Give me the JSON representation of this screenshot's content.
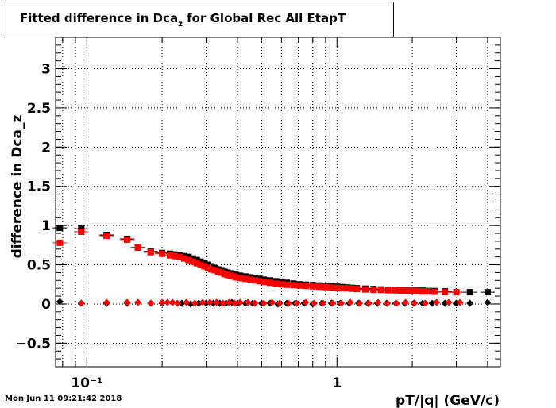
{
  "title": {
    "main": "Fitted difference in Dca",
    "sub": "z",
    "rest": " for Global Rec All EtapT"
  },
  "timestamp": "Mon Jun 11 09:21:42 2018",
  "chart_data": {
    "type": "scatter",
    "title": "Fitted difference in Dca_z for Global Rec All EtapT",
    "xlabel": "pT/|q| (GeV/c)",
    "ylabel": "difference in Dca_z",
    "xscale": "log",
    "xlim": [
      0.075,
      4.5
    ],
    "ylim": [
      -0.8,
      3.4
    ],
    "grid": true,
    "x_tick_labels": [
      "10⁻¹",
      "1"
    ],
    "y_tick_labels": [
      "−0.5",
      "0",
      "0.5",
      "1",
      "1.5",
      "2",
      "2.5",
      "3"
    ],
    "y_ticks": [
      -0.5,
      0,
      0.5,
      1,
      1.5,
      2,
      2.5,
      3
    ],
    "series": [
      {
        "marker": "square",
        "color": "#000000",
        "x": [
          0.078,
          0.095,
          0.12,
          0.145,
          0.16,
          0.18,
          0.2,
          0.215,
          0.225,
          0.235,
          0.245,
          0.255,
          0.265,
          0.275,
          0.285,
          0.295,
          0.305,
          0.315,
          0.325,
          0.335,
          0.345,
          0.355,
          0.365,
          0.375,
          0.385,
          0.395,
          0.41,
          0.43,
          0.45,
          0.47,
          0.49,
          0.51,
          0.54,
          0.57,
          0.6,
          0.63,
          0.67,
          0.71,
          0.75,
          0.8,
          0.85,
          0.9,
          0.95,
          1.0,
          1.05,
          1.1,
          1.15,
          1.2,
          1.3,
          1.4,
          1.5,
          1.6,
          1.7,
          1.8,
          1.9,
          2.0,
          2.1,
          2.2,
          2.3,
          2.45,
          2.7,
          3.0,
          3.4,
          4.0
        ],
        "y": [
          0.97,
          0.96,
          0.88,
          0.83,
          0.72,
          0.67,
          0.65,
          0.64,
          0.63,
          0.62,
          0.61,
          0.6,
          0.58,
          0.56,
          0.54,
          0.52,
          0.5,
          0.48,
          0.46,
          0.44,
          0.43,
          0.41,
          0.4,
          0.39,
          0.38,
          0.37,
          0.36,
          0.35,
          0.34,
          0.33,
          0.32,
          0.31,
          0.3,
          0.29,
          0.28,
          0.27,
          0.26,
          0.25,
          0.245,
          0.24,
          0.235,
          0.23,
          0.225,
          0.22,
          0.215,
          0.21,
          0.205,
          0.2,
          0.195,
          0.19,
          0.185,
          0.18,
          0.18,
          0.175,
          0.175,
          0.17,
          0.17,
          0.17,
          0.165,
          0.165,
          0.16,
          0.15,
          0.15,
          0.15
        ]
      },
      {
        "marker": "square",
        "color": "#ff0000",
        "x": [
          0.078,
          0.095,
          0.12,
          0.145,
          0.16,
          0.18,
          0.2,
          0.215,
          0.225,
          0.235,
          0.245,
          0.255,
          0.265,
          0.275,
          0.285,
          0.295,
          0.305,
          0.315,
          0.325,
          0.335,
          0.345,
          0.355,
          0.365,
          0.375,
          0.385,
          0.395,
          0.41,
          0.43,
          0.45,
          0.47,
          0.49,
          0.51,
          0.54,
          0.57,
          0.6,
          0.63,
          0.67,
          0.71,
          0.75,
          0.8,
          0.85,
          0.9,
          0.95,
          1.0,
          1.05,
          1.1,
          1.15,
          1.2,
          1.3,
          1.4,
          1.5,
          1.6,
          1.7,
          1.8,
          1.9,
          2.0,
          2.1,
          2.2,
          2.3,
          2.45,
          2.7,
          3.0
        ],
        "y": [
          0.78,
          0.92,
          0.87,
          0.82,
          0.72,
          0.66,
          0.64,
          0.62,
          0.61,
          0.6,
          0.58,
          0.56,
          0.54,
          0.52,
          0.5,
          0.48,
          0.46,
          0.44,
          0.43,
          0.41,
          0.4,
          0.38,
          0.37,
          0.36,
          0.35,
          0.34,
          0.33,
          0.32,
          0.31,
          0.3,
          0.29,
          0.28,
          0.27,
          0.26,
          0.25,
          0.245,
          0.24,
          0.235,
          0.23,
          0.225,
          0.22,
          0.215,
          0.21,
          0.205,
          0.2,
          0.2,
          0.195,
          0.19,
          0.185,
          0.18,
          0.18,
          0.175,
          0.175,
          0.17,
          0.17,
          0.165,
          0.165,
          0.16,
          0.16,
          0.155,
          0.15,
          0.15
        ]
      },
      {
        "marker": "diamond",
        "color": "#000000",
        "x": [
          0.078,
          0.095,
          0.12,
          0.145,
          0.16,
          0.18,
          0.2,
          0.22,
          0.24,
          0.26,
          0.28,
          0.3,
          0.32,
          0.34,
          0.36,
          0.38,
          0.4,
          0.43,
          0.46,
          0.5,
          0.54,
          0.58,
          0.63,
          0.68,
          0.74,
          0.8,
          0.87,
          0.95,
          1.03,
          1.12,
          1.22,
          1.33,
          1.45,
          1.58,
          1.72,
          1.87,
          2.03,
          2.2,
          2.4,
          2.7,
          3.0,
          3.4,
          4.0
        ],
        "y": [
          0.03,
          0.01,
          0.01,
          0.01,
          0.02,
          0.01,
          0.01,
          0.02,
          0.01,
          0.0,
          0.01,
          0.01,
          0.01,
          0.01,
          0.01,
          0.02,
          0.01,
          0.01,
          0.01,
          0.01,
          0.01,
          0.0,
          0.01,
          0.01,
          0.01,
          0.0,
          0.01,
          0.01,
          0.01,
          0.01,
          0.01,
          0.01,
          0.01,
          0.01,
          0.01,
          0.01,
          0.01,
          0.01,
          0.01,
          0.01,
          0.01,
          0.01,
          0.02
        ]
      },
      {
        "marker": "diamond",
        "color": "#ff0000",
        "x": [
          0.095,
          0.12,
          0.145,
          0.16,
          0.18,
          0.2,
          0.21,
          0.22,
          0.23,
          0.25,
          0.27,
          0.29,
          0.31,
          0.33,
          0.35,
          0.37,
          0.39,
          0.41,
          0.44,
          0.47,
          0.51,
          0.55,
          0.59,
          0.64,
          0.69,
          0.75,
          0.81,
          0.88,
          0.96,
          1.04,
          1.13,
          1.23,
          1.34,
          1.46,
          1.59,
          1.73,
          1.88,
          2.04,
          2.25,
          2.5,
          2.8,
          3.1
        ],
        "y": [
          0.01,
          0.02,
          0.02,
          0.02,
          0.01,
          0.02,
          0.02,
          0.02,
          0.01,
          0.02,
          0.01,
          0.02,
          0.02,
          0.02,
          0.01,
          0.02,
          0.01,
          0.02,
          0.02,
          0.01,
          0.01,
          0.02,
          0.01,
          0.01,
          0.01,
          0.02,
          0.01,
          0.01,
          0.01,
          0.01,
          0.02,
          0.01,
          0.01,
          0.02,
          0.01,
          0.01,
          0.02,
          0.01,
          0.01,
          0.02,
          0.02,
          0.02
        ]
      }
    ]
  }
}
